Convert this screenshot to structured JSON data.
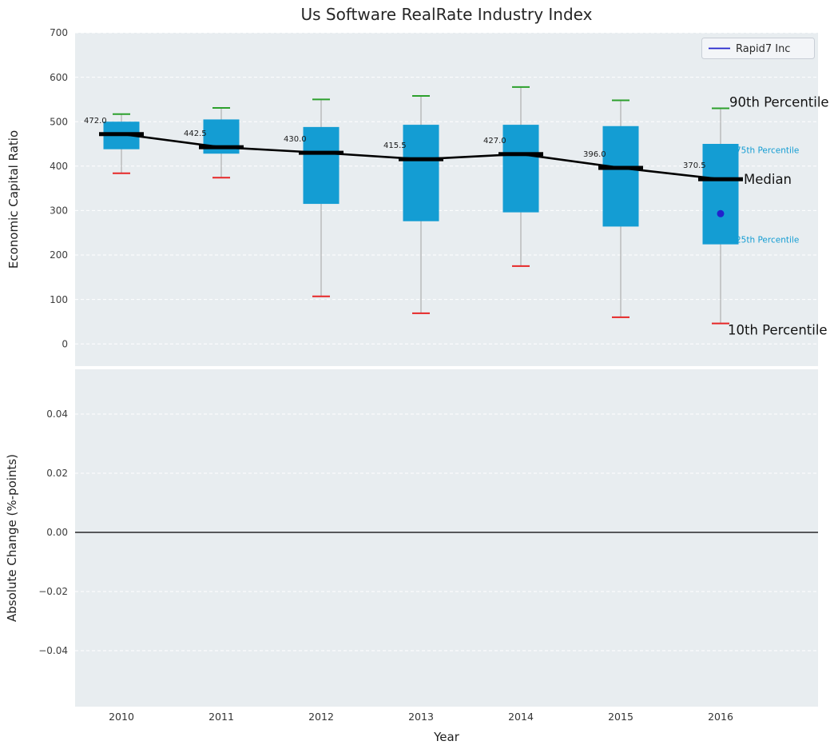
{
  "chart_data": [
    {
      "type": "boxplot",
      "title": "Us Software RealRate Industry Index",
      "ylabel": "Economic Capital Ratio",
      "ylim": [
        -50,
        700
      ],
      "yticks": [
        0,
        100,
        200,
        300,
        400,
        500,
        600,
        700
      ],
      "categories": [
        "2010",
        "2011",
        "2012",
        "2013",
        "2014",
        "2015",
        "2016"
      ],
      "series": [
        {
          "name": "90th Percentile",
          "values": [
            517,
            531,
            550,
            558,
            578,
            548,
            530
          ]
        },
        {
          "name": "75th Percentile",
          "values": [
            500,
            505,
            488,
            493,
            493,
            490,
            450
          ]
        },
        {
          "name": "Median",
          "values": [
            472.0,
            442.5,
            430.0,
            415.5,
            427.0,
            396.0,
            370.5
          ]
        },
        {
          "name": "25th Percentile",
          "values": [
            438,
            428,
            315,
            276,
            296,
            264,
            224
          ]
        },
        {
          "name": "10th Percentile",
          "values": [
            384,
            374,
            107,
            69,
            175,
            60,
            46
          ]
        }
      ],
      "median_labels": [
        "472.0",
        "442.5",
        "430.0",
        "415.5",
        "427.0",
        "396.0",
        "370.5"
      ],
      "point": {
        "label": "Rapid7 Inc",
        "category": "2016",
        "value": 293
      },
      "legend": [
        {
          "label": "Rapid7 Inc",
          "color": "#2222cc"
        }
      ],
      "annotations": [
        {
          "text": "90th Percentile",
          "size": "large",
          "color": "#141414"
        },
        {
          "text": "75th Percentile",
          "size": "small",
          "color": "#149dd3"
        },
        {
          "text": "Median",
          "size": "large",
          "color": "#141414"
        },
        {
          "text": "25th Percentile",
          "size": "small",
          "color": "#149dd3"
        },
        {
          "text": "10th Percentile",
          "size": "large",
          "color": "#141414"
        }
      ],
      "colors": {
        "box": "#149dd3",
        "cap_90": "#2ca02c",
        "cap_10": "#e62727",
        "median": "#000000",
        "whisker": "#a9a9a9",
        "point": "#2222cc",
        "plot_bg": "#e8edf0",
        "grid": "#ffffff"
      },
      "legend_position": "upper right",
      "grid": "horizontal-dashed"
    },
    {
      "type": "line",
      "ylabel": "Absolute Change (%-points)",
      "xlabel": "Year",
      "ytick_labels": [
        "0.04",
        "0.02",
        "0.00",
        "−0.02",
        "−0.04"
      ],
      "ytick_values": [
        0.04,
        0.02,
        0,
        -0.02,
        -0.04
      ],
      "ylim": [
        -0.059,
        0.0551
      ],
      "zero_line": 0,
      "series": []
    }
  ]
}
